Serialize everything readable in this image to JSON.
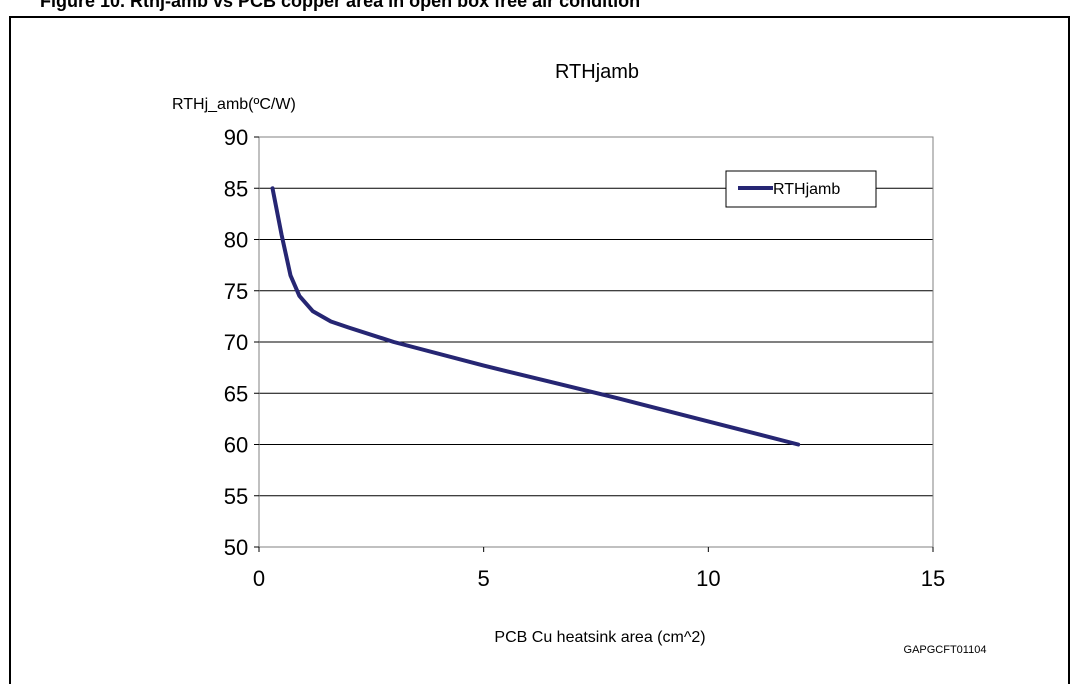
{
  "figure": {
    "caption_partial": "Figure 10. Rthj-amb vs PCB copper area in open box free air condition",
    "image_code": "GAPGCFT01104"
  },
  "chart_data": {
    "type": "line",
    "title": "RTHjamb",
    "xlabel": "PCB Cu heatsink area (cm^2)",
    "ylabel": "RTHj_amb(ºC/W)",
    "xlim": [
      0,
      15
    ],
    "ylim": [
      50,
      90
    ],
    "x_ticks": [
      "0",
      "5",
      "10",
      "15"
    ],
    "y_ticks": [
      "50",
      "55",
      "60",
      "65",
      "70",
      "75",
      "80",
      "85",
      "90"
    ],
    "grid": "horizontal",
    "legend_position": "top-right",
    "series": [
      {
        "name": "RTHjamb",
        "color": "#262673",
        "x": [
          0.3,
          0.5,
          0.7,
          0.9,
          1.2,
          1.6,
          2,
          3,
          5,
          8,
          12
        ],
        "y": [
          85,
          80.5,
          76.5,
          74.5,
          73,
          72,
          71.4,
          70,
          67.7,
          64.5,
          60
        ]
      }
    ]
  }
}
